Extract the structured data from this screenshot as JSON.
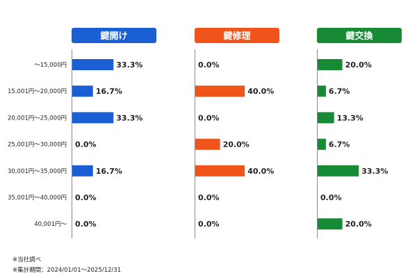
{
  "chart_data": {
    "type": "bar",
    "orientation": "horizontal",
    "categories": [
      "～15,000円",
      "15,001円～20,000円",
      "20,001円～25,000円",
      "25,001円～30,000円",
      "30,001円～35,000円",
      "35,001円～40,000円",
      "40,001円～"
    ],
    "xlim": [
      0,
      100
    ],
    "value_suffix": "%",
    "grid": false,
    "series": [
      {
        "name": "鍵開け",
        "color": "#1a5fd4",
        "values": [
          33.3,
          16.7,
          33.3,
          0.0,
          16.7,
          0.0,
          0.0
        ]
      },
      {
        "name": "鍵修理",
        "color": "#f0541a",
        "values": [
          0.0,
          40.0,
          0.0,
          20.0,
          40.0,
          0.0,
          0.0
        ]
      },
      {
        "name": "鍵交換",
        "color": "#178a35",
        "values": [
          20.0,
          6.7,
          13.3,
          6.7,
          33.3,
          0.0,
          20.0
        ]
      }
    ]
  },
  "notes": {
    "source": "※当社調べ",
    "period": "※集計期間：2024/01/01～2025/12/31"
  }
}
